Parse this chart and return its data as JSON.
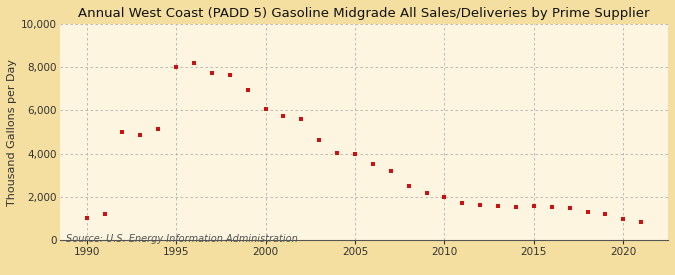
{
  "title": "Annual West Coast (PADD 5) Gasoline Midgrade All Sales/Deliveries by Prime Supplier",
  "ylabel": "Thousand Gallons per Day",
  "source": "Source: U.S. Energy Information Administration",
  "background_color": "#f5dfa0",
  "plot_bg_color": "#fdf5e0",
  "marker_color": "#cc1111",
  "years": [
    1990,
    1991,
    1992,
    1993,
    1994,
    1995,
    1996,
    1997,
    1998,
    1999,
    2000,
    2001,
    2002,
    2003,
    2004,
    2005,
    2006,
    2007,
    2008,
    2009,
    2010,
    2011,
    2012,
    2013,
    2014,
    2015,
    2016,
    2017,
    2018,
    2019,
    2020,
    2021
  ],
  "values": [
    1000,
    1200,
    5000,
    4850,
    5150,
    8000,
    8200,
    7750,
    7650,
    6950,
    6050,
    5750,
    5600,
    4620,
    4020,
    3980,
    3500,
    3180,
    2520,
    2180,
    2000,
    1720,
    1620,
    1560,
    1530,
    1570,
    1530,
    1480,
    1320,
    1230,
    980,
    820
  ],
  "xlim": [
    1988.5,
    2022.5
  ],
  "ylim": [
    0,
    10000
  ],
  "yticks": [
    0,
    2000,
    4000,
    6000,
    8000,
    10000
  ],
  "xticks": [
    1990,
    1995,
    2000,
    2005,
    2010,
    2015,
    2020
  ],
  "grid_color": "#b0b0b0",
  "title_fontsize": 9.5,
  "label_fontsize": 8,
  "tick_fontsize": 7.5,
  "source_fontsize": 7
}
